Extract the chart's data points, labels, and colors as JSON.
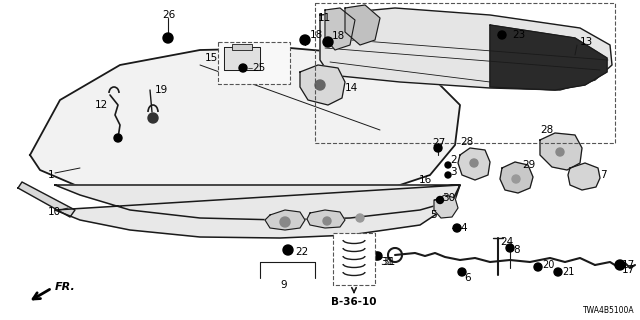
{
  "bg_color": "#ffffff",
  "line_color": "#1a1a1a",
  "text_color": "#000000",
  "diagram_code": "TWA4B5100A",
  "part_code": "B-36-10",
  "fig_width": 6.4,
  "fig_height": 3.2,
  "dpi": 100
}
